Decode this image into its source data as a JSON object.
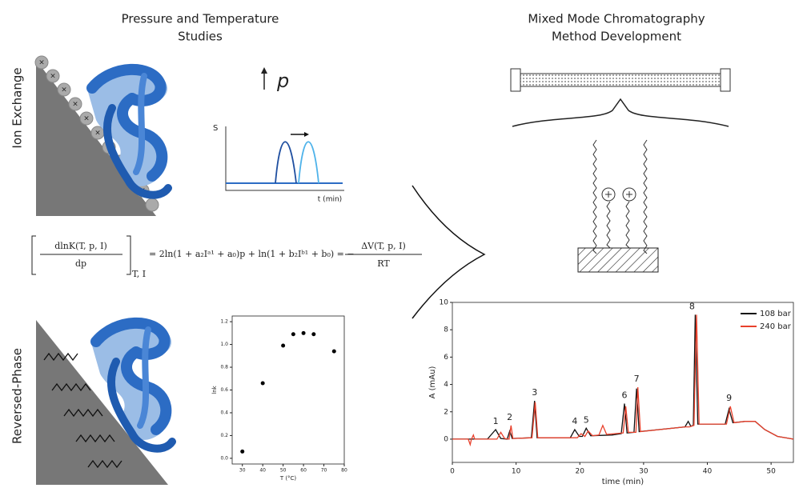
{
  "left_title": [
    "Pressure and Temperature",
    "Studies"
  ],
  "right_title": [
    "Mixed Mode Chromatography",
    "Method Development"
  ],
  "ion_exchange": {
    "label": "Ion Exchange",
    "pressure_symbol": "p",
    "y_label": "S",
    "x_label": "t (min)"
  },
  "reversed_phase": {
    "label": "Reversed-Phase"
  },
  "equation": {
    "lhs_numerator": "dlnK(T, p, I)",
    "lhs_denominator": "dp",
    "lhs_subscript": "T, I",
    "middle": "= 2ln(1 + a₂Iᵃ¹ + a₀)p + ln(1 + b₂Iᵇ¹ + b₀) = −",
    "rhs_numerator": "ΔV(T, p, I)",
    "rhs_denominator": "RT"
  },
  "chart_data": [
    {
      "type": "scatter",
      "x_label": "T (°C)",
      "y_label": "lnk",
      "color": "#000000",
      "x": [
        30,
        40,
        50,
        55,
        60,
        65,
        75
      ],
      "values": [
        0.06,
        0.66,
        0.99,
        1.09,
        1.1,
        1.09,
        0.94
      ],
      "xlim": [
        25,
        80
      ],
      "ylim": [
        -0.05,
        1.25
      ],
      "xticks": [
        30,
        40,
        50,
        60,
        70,
        80
      ],
      "yticks": [
        {
          "value": 0,
          "label": "0.0"
        },
        0.2,
        0.4,
        0.6,
        0.8,
        {
          "value": 1,
          "label": "1.0"
        },
        1.2
      ]
    },
    {
      "type": "line",
      "x_label": "time (min)",
      "y_label": "A (mAu)",
      "legend": "upper right",
      "xlim": [
        0,
        53.5
      ],
      "ylim": [
        -1.7,
        10
      ],
      "xticks": [
        0,
        10,
        20,
        30,
        40,
        50
      ],
      "yticks": [
        0,
        2,
        4,
        6,
        8,
        10
      ],
      "series": [
        {
          "name": "108 bar",
          "color": "#111111",
          "x": [
            0,
            5.5,
            6.8,
            7.6,
            8.6,
            9,
            9.4,
            12.4,
            12.9,
            13.3,
            18.5,
            19.2,
            19.9,
            20.4,
            21,
            21.7,
            25,
            26.5,
            27,
            27.4,
            28.5,
            28.9,
            29.3,
            36.5,
            37,
            37.4,
            37.8,
            38.1,
            38.5,
            42.8,
            43.4,
            44,
            46,
            47.5,
            49,
            51,
            53.5
          ],
          "values": [
            0,
            0,
            0.7,
            0.05,
            0,
            0.6,
            0.05,
            0.1,
            2.8,
            0.1,
            0.1,
            0.7,
            0.2,
            0.2,
            0.8,
            0.25,
            0.3,
            0.4,
            2.6,
            0.45,
            0.5,
            3.7,
            0.55,
            0.9,
            1.3,
            0.95,
            1,
            9.1,
            1.1,
            1.1,
            2.2,
            1.2,
            1.3,
            1.3,
            0.7,
            0.2,
            0
          ]
        },
        {
          "name": "240 bar",
          "color": "#e8412c",
          "x": [
            0,
            2.5,
            2.8,
            3,
            3.3,
            3.5,
            7,
            7.6,
            8.2,
            8.9,
            9.2,
            9.5,
            12.5,
            13,
            13.4,
            19.6,
            20.2,
            20.8,
            21.3,
            22,
            23,
            23.6,
            24.2,
            26.8,
            27.2,
            27.6,
            28.8,
            29.1,
            29.5,
            36.5,
            37.2,
            37.9,
            38.3,
            38.7,
            43,
            43.6,
            44.2,
            46,
            47.5,
            49,
            51,
            53.5
          ],
          "values": [
            0,
            0,
            -0.4,
            0,
            0.3,
            0,
            0,
            0.5,
            0.05,
            0,
            1,
            0.05,
            0.1,
            2.7,
            0.1,
            0.1,
            0.4,
            0.2,
            0.6,
            0.25,
            0.3,
            1,
            0.35,
            0.45,
            2.4,
            0.5,
            0.5,
            3.8,
            0.55,
            0.9,
            0.9,
            1,
            9.1,
            1.1,
            1.1,
            2.4,
            1.2,
            1.3,
            1.3,
            0.7,
            0.2,
            0
          ]
        }
      ],
      "peak_labels": [
        {
          "label": "1",
          "x": 6.8,
          "y": 0.7
        },
        {
          "label": "2",
          "x": 9,
          "y": 1
        },
        {
          "label": "3",
          "x": 12.9,
          "y": 2.8
        },
        {
          "label": "4",
          "x": 19.2,
          "y": 0.7
        },
        {
          "label": "5",
          "x": 21,
          "y": 0.8
        },
        {
          "label": "6",
          "x": 27,
          "y": 2.6
        },
        {
          "label": "7",
          "x": 28.9,
          "y": 3.8
        },
        {
          "label": "8",
          "x": 37.6,
          "y": 9.1
        },
        {
          "label": "9",
          "x": 43.4,
          "y": 2.4
        }
      ]
    }
  ]
}
